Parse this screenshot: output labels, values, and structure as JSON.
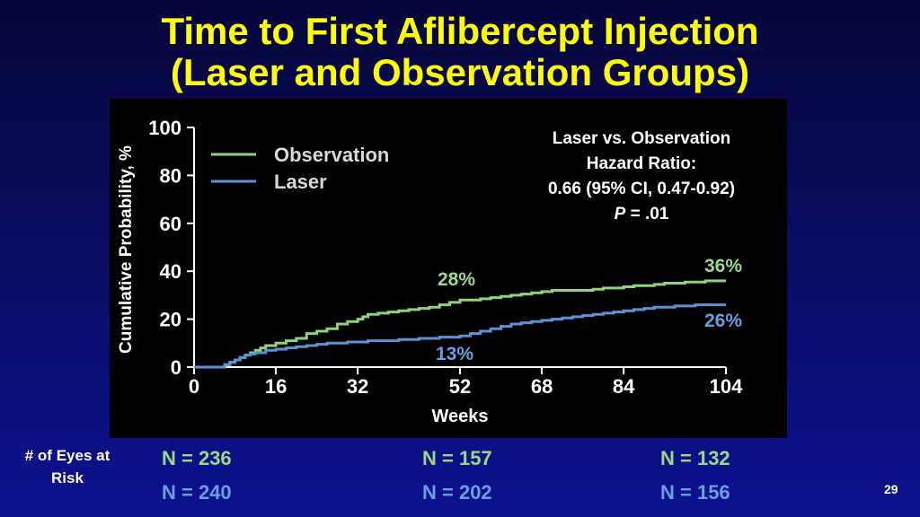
{
  "title_line1": "Time to First Aflibercept Injection",
  "title_line2": "(Laser and Observation Groups)",
  "hazard": {
    "line1": "Laser vs. Observation",
    "line2": "Hazard Ratio:",
    "line3": "0.66 (95% CI, 0.47-0.92)",
    "p_label": "P",
    "p_value": " = .01"
  },
  "annotations": {
    "obs_mid": "28%",
    "obs_end": "36%",
    "laser_mid": "13%",
    "laser_end": "26%"
  },
  "at_risk": {
    "label_line1": "# of Eyes at",
    "label_line2": "Risk",
    "observation": [
      "N = 236",
      "N = 157",
      "N = 132"
    ],
    "laser": [
      "N = 240",
      "N = 202",
      "N = 156"
    ]
  },
  "page_number": "29",
  "colors": {
    "observation": "#8fd47a",
    "laser": "#5b93d6",
    "title": "#ffff00",
    "background": "#0a0d66"
  },
  "chart_data": {
    "type": "line",
    "xlabel": "Weeks",
    "ylabel": "Cumulative Probability, %",
    "xlim": [
      0,
      104
    ],
    "ylim": [
      0,
      100
    ],
    "xticks": [
      0,
      16,
      32,
      52,
      68,
      84,
      104
    ],
    "yticks": [
      0,
      20,
      40,
      60,
      80,
      100
    ],
    "grid": false,
    "legend_position": "top-left",
    "series": [
      {
        "name": "Observation",
        "color": "#8fd47a",
        "x": [
          0,
          5,
          6,
          7,
          8,
          9,
          10,
          11,
          12,
          13,
          14,
          16,
          18,
          20,
          22,
          24,
          26,
          28,
          30,
          32,
          33,
          34,
          36,
          38,
          40,
          42,
          44,
          46,
          48,
          50,
          52,
          54,
          56,
          58,
          60,
          62,
          64,
          66,
          68,
          70,
          72,
          74,
          76,
          78,
          80,
          82,
          84,
          86,
          88,
          90,
          92,
          94,
          96,
          98,
          100,
          102,
          104
        ],
        "y": [
          0,
          0,
          1,
          2,
          3,
          4,
          5,
          6,
          7,
          8,
          9,
          10,
          11,
          12,
          14,
          15,
          16,
          18,
          19,
          20,
          21,
          22,
          22.5,
          23,
          23.5,
          24,
          24.5,
          25,
          26,
          27,
          28,
          28,
          28.5,
          29,
          29.5,
          30,
          30.5,
          31,
          31.5,
          32,
          32,
          32,
          32,
          32.5,
          33,
          33,
          33.5,
          34,
          34,
          34.5,
          35,
          35,
          35.5,
          35.5,
          36,
          36,
          36
        ]
      },
      {
        "name": "Laser",
        "color": "#5b93d6",
        "x": [
          0,
          5,
          6,
          7,
          8,
          9,
          10,
          11,
          12,
          14,
          16,
          18,
          20,
          22,
          24,
          26,
          28,
          30,
          32,
          34,
          36,
          38,
          40,
          42,
          44,
          46,
          48,
          50,
          52,
          54,
          56,
          58,
          60,
          62,
          64,
          66,
          68,
          70,
          72,
          74,
          76,
          78,
          80,
          82,
          84,
          86,
          88,
          90,
          92,
          94,
          96,
          98,
          100,
          102,
          104
        ],
        "y": [
          0,
          0,
          1,
          2,
          3,
          4,
          5,
          5.5,
          6,
          7,
          7.5,
          8,
          8.5,
          9,
          9.5,
          10,
          10,
          10.5,
          10.5,
          11,
          11,
          11,
          11.5,
          11.5,
          12,
          12,
          12.5,
          12.5,
          13,
          14,
          15,
          16,
          17,
          18,
          18.5,
          19,
          19.5,
          20,
          20.5,
          21,
          21.5,
          22,
          22.5,
          23,
          23.5,
          24,
          24.5,
          25,
          25,
          25.5,
          25.5,
          26,
          26,
          26,
          26
        ]
      }
    ]
  }
}
